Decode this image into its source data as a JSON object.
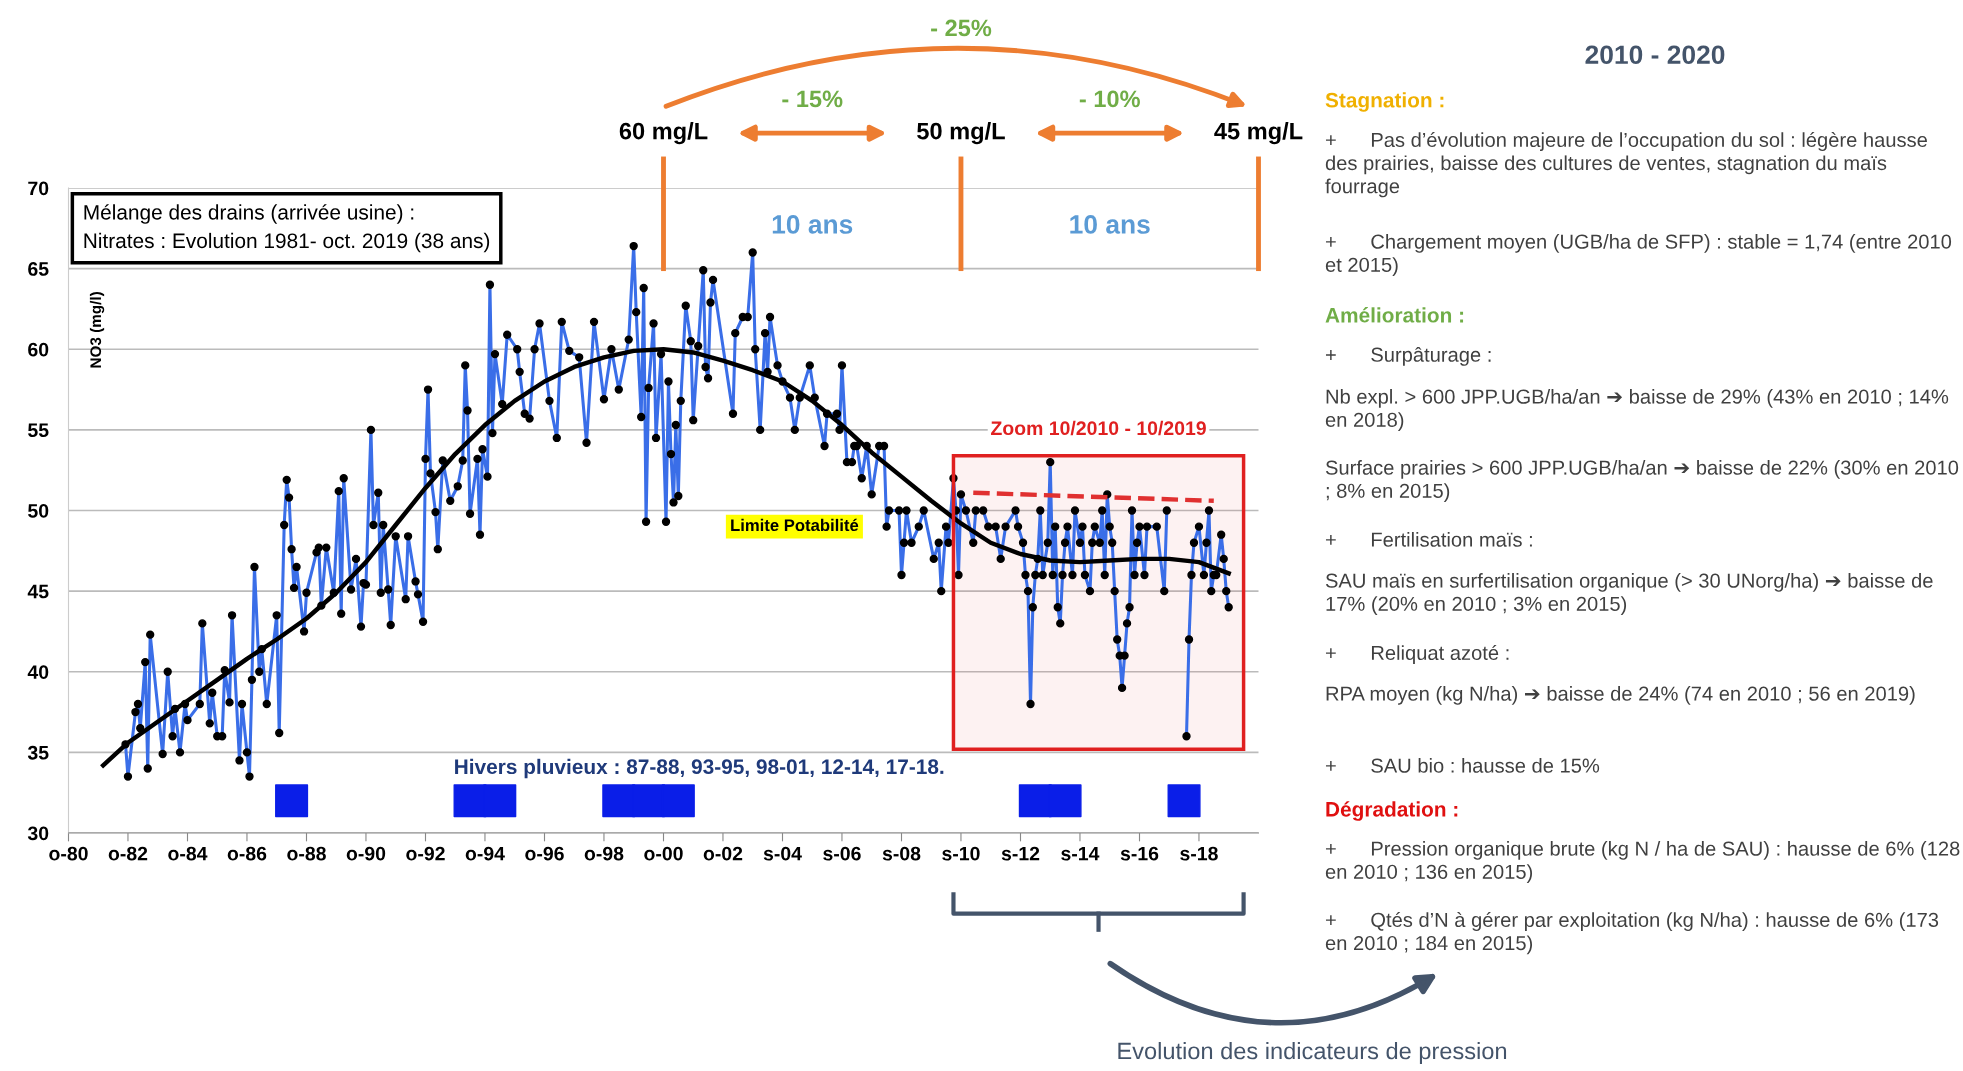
{
  "chart_data": [
    {
      "type": "line",
      "title": "Mélange des drains (arrivée usine) :\nNitrates : Evolution 1981- oct. 2019 (38 ans)",
      "ylabel": "NO3 (mg/l)",
      "xlim": [
        "1980-10",
        "2020-10"
      ],
      "ylim": [
        30,
        70
      ],
      "xticks": [
        {
          "value": "1980-10",
          "label": "o-80"
        },
        {
          "value": "1982-10",
          "label": "o-82"
        },
        {
          "value": "1984-10",
          "label": "o-84"
        },
        {
          "value": "1986-10",
          "label": "o-86"
        },
        {
          "value": "1988-10",
          "label": "o-88"
        },
        {
          "value": "1990-10",
          "label": "o-90"
        },
        {
          "value": "1992-10",
          "label": "o-92"
        },
        {
          "value": "1994-10",
          "label": "o-94"
        },
        {
          "value": "1996-10",
          "label": "o-96"
        },
        {
          "value": "1998-10",
          "label": "o-98"
        },
        {
          "value": "2000-10",
          "label": "o-00"
        },
        {
          "value": "2002-10",
          "label": "o-02"
        },
        {
          "value": "2004-10",
          "label": "s-04"
        },
        {
          "value": "2006-10",
          "label": "s-06"
        },
        {
          "value": "2008-10",
          "label": "s-08"
        },
        {
          "value": "2010-10",
          "label": "s-10"
        },
        {
          "value": "2012-10",
          "label": "s-12"
        },
        {
          "value": "2014-10",
          "label": "s-14"
        },
        {
          "value": "2016-10",
          "label": "s-16"
        },
        {
          "value": "2018-10",
          "label": "s-18"
        }
      ],
      "yticks": [
        30,
        35,
        40,
        45,
        50,
        55,
        60,
        65,
        70
      ],
      "grid": "y",
      "series": [
        {
          "type": "line",
          "color": "#3a6ee8",
          "marker": "circle",
          "x": [
            "1982-09",
            "1982-10",
            "1983-01",
            "1983-02",
            "1983-03",
            "1983-05",
            "1983-06",
            "1983-07",
            "1983-12",
            "1984-02",
            "1984-04",
            "1984-05",
            "1984-07",
            "1984-09",
            "1984-10",
            "1985-03",
            "1985-04",
            "1985-07",
            "1985-08",
            "1985-10",
            "1985-12",
            "1986-01",
            "1986-03",
            "1986-04",
            "1986-07",
            "1986-08",
            "1986-10",
            "1986-11",
            "1986-12",
            "1987-01",
            "1987-03",
            "1987-04",
            "1987-06",
            "1987-10",
            "1987-11",
            "1988-01",
            "1988-02",
            "1988-03",
            "1988-04",
            "1988-05",
            "1988-06",
            "1988-09",
            "1988-10",
            "1989-02",
            "1989-03",
            "1989-04",
            "1989-06",
            "1989-09",
            "1989-11",
            "1989-12",
            "1990-01",
            "1990-04",
            "1990-06",
            "1990-08",
            "1990-09",
            "1990-10",
            "1990-12",
            "1991-01",
            "1991-03",
            "1991-04",
            "1991-05",
            "1991-07",
            "1991-08",
            "1991-10",
            "1992-02",
            "1992-03",
            "1992-06",
            "1992-07",
            "1992-09",
            "1992-10",
            "1992-11",
            "1992-12",
            "1993-02",
            "1993-03",
            "1993-05",
            "1993-08",
            "1993-11",
            "1994-01",
            "1994-02",
            "1994-03",
            "1994-04",
            "1994-07",
            "1994-08",
            "1994-09",
            "1994-11",
            "1994-12",
            "1995-01",
            "1995-02",
            "1995-05",
            "1995-07",
            "1995-11",
            "1995-12",
            "1996-02",
            "1996-04",
            "1996-06",
            "1996-08",
            "1996-12",
            "1997-03",
            "1997-05",
            "1997-08",
            "1997-12",
            "1998-03",
            "1998-06",
            "1998-10",
            "1999-01",
            "1999-04",
            "1999-08",
            "1999-10",
            "1999-11",
            "2000-01",
            "2000-02",
            "2000-03",
            "2000-04",
            "2000-06",
            "2000-07",
            "2000-09",
            "2000-11",
            "2000-12",
            "2001-01",
            "2001-02",
            "2001-03",
            "2001-04",
            "2001-05",
            "2001-07",
            "2001-09",
            "2001-10",
            "2001-12",
            "2002-02",
            "2002-03",
            "2002-04",
            "2002-05",
            "2002-06",
            "2003-02",
            "2003-03",
            "2003-06",
            "2003-08",
            "2003-10",
            "2003-11",
            "2004-01",
            "2004-03",
            "2004-04",
            "2004-05",
            "2004-08",
            "2004-10",
            "2005-01",
            "2005-03",
            "2005-05",
            "2005-09",
            "2005-11",
            "2006-03",
            "2006-04",
            "2006-08",
            "2006-09",
            "2006-10",
            "2006-12",
            "2007-02",
            "2007-03",
            "2007-04",
            "2007-06",
            "2007-08",
            "2007-10",
            "2008-01",
            "2008-03",
            "2008-04",
            "2008-05",
            "2008-09",
            "2008-10",
            "2008-11",
            "2008-12",
            "2009-02",
            "2009-05",
            "2009-07",
            "2009-11",
            "2010-01",
            "2010-02",
            "2010-04",
            "2010-05",
            "2010-07",
            "2010-08",
            "2010-09",
            "2010-10",
            "2010-12",
            "2011-03",
            "2011-04",
            "2011-07",
            "2011-09",
            "2011-12",
            "2012-02",
            "2012-04",
            "2012-08",
            "2012-09",
            "2012-11",
            "2012-12",
            "2013-01",
            "2013-02",
            "2013-03",
            "2013-04",
            "2013-05",
            "2013-06",
            "2013-07",
            "2013-09",
            "2013-10",
            "2013-11",
            "2013-12",
            "2014-01",
            "2014-02",
            "2014-03",
            "2014-04",
            "2014-05",
            "2014-07",
            "2014-08",
            "2014-10",
            "2014-11",
            "2014-12",
            "2015-02",
            "2015-03",
            "2015-04",
            "2015-06",
            "2015-07",
            "2015-08",
            "2015-09",
            "2015-10",
            "2015-11",
            "2015-12",
            "2016-01",
            "2016-02",
            "2016-03",
            "2016-04",
            "2016-05",
            "2016-06",
            "2016-07",
            "2016-08",
            "2016-09",
            "2016-10",
            "2016-12",
            "2017-01",
            "2017-05",
            "2017-08",
            "2017-09",
            "2018-01",
            "2018-05",
            "2018-06",
            "2018-07",
            "2018-08",
            "2018-10",
            "2018-12",
            "2019-01",
            "2019-02",
            "2019-03",
            "2019-04",
            "2019-05",
            "2019-07",
            "2019-08",
            "2019-09",
            "2019-10"
          ],
          "values": [
            35.5,
            33.5,
            37.5,
            38.0,
            36.5,
            40.6,
            34.0,
            42.3,
            34.9,
            40.0,
            36.0,
            37.7,
            35.0,
            38.0,
            37.0,
            38.0,
            43.0,
            36.8,
            38.7,
            36.0,
            36.0,
            40.1,
            38.1,
            43.5,
            34.5,
            38.0,
            35.0,
            33.5,
            39.5,
            46.5,
            40.0,
            41.4,
            38.0,
            43.5,
            36.2,
            49.1,
            51.9,
            50.8,
            47.6,
            45.2,
            46.5,
            42.5,
            44.9,
            47.4,
            47.7,
            44.1,
            47.7,
            44.9,
            51.2,
            43.6,
            52.0,
            45.1,
            47.0,
            42.8,
            45.5,
            45.4,
            55.0,
            49.1,
            51.1,
            44.9,
            49.1,
            45.1,
            42.9,
            48.4,
            44.5,
            48.4,
            45.6,
            44.8,
            43.1,
            53.2,
            57.5,
            52.3,
            49.9,
            47.6,
            53.1,
            50.6,
            51.5,
            53.1,
            59.0,
            56.2,
            49.8,
            53.2,
            48.5,
            53.8,
            52.1,
            64.0,
            54.8,
            59.7,
            56.6,
            60.9,
            60.0,
            58.6,
            56.0,
            55.7,
            60.0,
            61.6,
            56.8,
            54.5,
            61.7,
            59.9,
            59.5,
            54.2,
            61.7,
            56.9,
            60.0,
            57.5,
            60.6,
            66.4,
            62.3,
            55.8,
            63.8,
            49.3,
            57.6,
            61.6,
            54.5,
            59.7,
            49.3,
            58.0,
            53.5,
            50.5,
            55.3,
            50.9,
            56.8,
            62.7,
            60.5,
            55.6,
            60.2,
            64.9,
            58.9,
            58.2,
            62.9,
            64.3,
            56.0,
            61.0,
            62.0,
            62.0,
            66.0,
            60.0,
            55.0,
            61.0,
            58.6,
            62.0,
            59.0,
            58.0,
            57.0,
            55.0,
            57.0,
            59.0,
            57.0,
            54.0,
            56.0,
            56.0,
            55.0,
            59.0,
            53.0,
            53.0,
            54.0,
            54.0,
            52.0,
            54.0,
            51.0,
            54.0,
            54.0,
            49.0,
            50.0,
            50.0,
            46.0,
            48.0,
            50.0,
            48.0,
            49.0,
            50.0,
            47.0,
            48.0,
            45.0,
            49.0,
            48.0,
            52.0,
            50.0,
            46.0,
            51.0,
            50.0,
            48.0,
            50.0,
            50.0,
            49.0,
            49.0,
            47.0,
            49.0,
            50.0,
            49.0,
            48.0,
            46.0,
            45.0,
            38.0,
            44.0,
            46.0,
            47.0,
            50.0,
            46.0,
            48.0,
            53.0,
            46.0,
            49.0,
            44.0,
            43.0,
            46.0,
            48.0,
            49.0,
            46.0,
            50.0,
            48.0,
            49.0,
            46.0,
            45.0,
            48.0,
            49.0,
            48.0,
            50.0,
            46.0,
            51.0,
            49.0,
            48.0,
            45.0,
            42.0,
            41.0,
            39.0,
            41.0,
            43.0,
            44.0,
            50.0,
            46.0,
            48.0,
            49.0,
            46.0,
            49.0,
            49.0,
            45.0,
            50.0,
            null,
            36.0,
            42.0,
            46.0,
            48.0,
            49.0,
            46.0,
            48.0,
            50.0,
            45.0,
            46.0,
            46.0,
            48.5,
            47.0,
            45.0,
            44.0
          ]
        },
        {
          "type": "line",
          "color": "#000000",
          "marker": "none",
          "x": [
            "1981-12",
            "1982-10",
            "1983-10",
            "1984-10",
            "1985-10",
            "1986-10",
            "1987-10",
            "1988-10",
            "1989-10",
            "1990-10",
            "1991-10",
            "1992-10",
            "1993-10",
            "1994-10",
            "1995-10",
            "1996-10",
            "1997-10",
            "1998-10",
            "1999-10",
            "2000-10",
            "2001-10",
            "2002-10",
            "2003-10",
            "2004-10",
            "2005-10",
            "2006-10",
            "2007-10",
            "2008-10",
            "2009-10",
            "2010-10",
            "2011-10",
            "2012-10",
            "2013-10",
            "2014-10",
            "2015-10",
            "2016-10",
            "2017-10",
            "2018-10",
            "2019-10"
          ],
          "values": [
            34.2,
            35.6,
            36.9,
            38.2,
            39.5,
            40.8,
            42.0,
            43.3,
            44.9,
            46.8,
            49.1,
            51.4,
            53.5,
            55.3,
            56.8,
            58.0,
            58.9,
            59.5,
            59.9,
            60.0,
            59.8,
            59.3,
            58.7,
            58.0,
            56.8,
            55.3,
            53.6,
            52.1,
            50.6,
            49.2,
            48.0,
            47.3,
            46.9,
            46.8,
            46.9,
            47.0,
            47.0,
            46.8,
            46.1
          ]
        },
        {
          "type": "line",
          "color": "#e03030",
          "marker": "none",
          "line_style": "dashed",
          "x": [
            "2011-03",
            "2019-04"
          ],
          "values": [
            51.1,
            50.6
          ]
        },
        {
          "type": "scatter",
          "color": "#0a1ee8",
          "marker": "square",
          "x": [
            "1988-04",
            "1994-04",
            "1995-04",
            "1999-04",
            "2000-04",
            "2001-04",
            "2013-04",
            "2014-04",
            "2018-04"
          ],
          "values": [
            32,
            32,
            32,
            32,
            32,
            32,
            32,
            32,
            32
          ]
        }
      ],
      "ref_lines": [
        {
          "axis": "x",
          "value": "2000-10",
          "label": "60 mg/L",
          "color": "#ed7d31"
        },
        {
          "axis": "x",
          "value": "2010-10",
          "label": "50 mg/L",
          "color": "#ed7d31"
        },
        {
          "axis": "x",
          "value": "2020-10",
          "label": "45 mg/L",
          "color": "#ed7d31"
        }
      ],
      "bands": [
        {
          "axis": "x",
          "from": "2010-07",
          "to": "2020-04",
          "label": "Zoom 10/2010 - 10/2019",
          "color": "#e02020"
        }
      ],
      "annotations": [
        "Limite Potabilité",
        "Hivers pluvieux : 87-88, 93-95, 98-01, 12-14, 17-18.",
        "10 ans",
        "10 ans",
        "- 15%",
        "- 10%",
        "- 25%",
        "Evolution des indicateurs de pression"
      ]
    },
    {
      "type": "other",
      "title": "2010 - 2020",
      "annotations": [
        "Stagnation :",
        "+      Pas d’évolution majeure de l’occupation du sol : légère hausse des prairies, baisse des cultures de ventes, stagnation du maïs fourrage",
        "+      Chargement moyen (UGB/ha de SFP) : stable = 1,74 (entre 2010 et 2015)",
        "Amélioration :",
        "+      Surpâturage :",
        "Nb expl. > 600 JPP.UGB/ha/an ➔ baisse de 29% (43% en 2010 ; 14% en 2018)",
        "Surface prairies > 600 JPP.UGB/ha/an ➔ baisse de 22% (30% en 2010 ; 8% en 2015)",
        "+      Fertilisation maïs :",
        "SAU maïs en surfertilisation organique (> 30 UNorg/ha) ➔ baisse de 17% (20% en 2010 ; 3% en 2015)",
        "+      Reliquat azoté :",
        "RPA moyen (kg N/ha) ➔ baisse de 24% (74 en 2010 ; 56 en 2019)",
        "+      SAU bio : hausse de 15%",
        "Dégradation :",
        "+      Pression organique brute (kg N / ha de SAU) : hausse de 6% (128 en 2010 ; 136 en 2015)",
        "+      Qtés d’N à gérer par exploitation (kg N/ha) : hausse de 6% (173 en 2010 ; 184 en 2015)"
      ]
    }
  ]
}
